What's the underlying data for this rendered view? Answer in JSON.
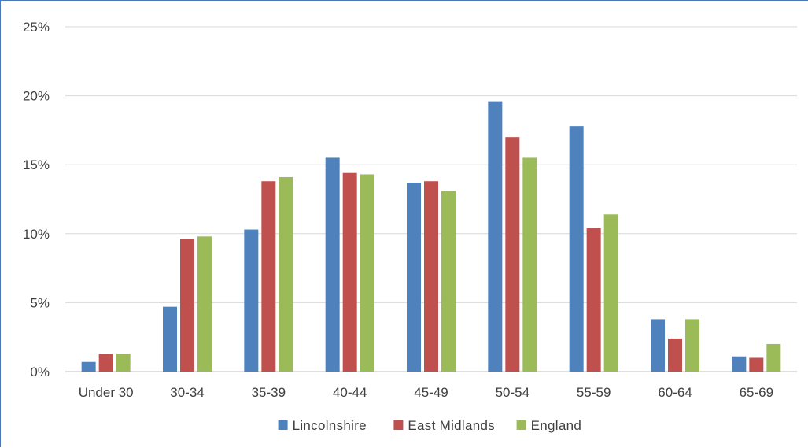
{
  "chart_data": {
    "type": "bar",
    "title": "",
    "xlabel": "",
    "ylabel": "",
    "categories": [
      "Under 30",
      "30-34",
      "35-39",
      "40-44",
      "45-49",
      "50-54",
      "55-59",
      "60-64",
      "65-69"
    ],
    "series": [
      {
        "name": "Lincolnshire",
        "color": "#4f81bd",
        "values": [
          0.7,
          4.7,
          10.3,
          15.5,
          13.7,
          19.6,
          17.8,
          3.8,
          1.1
        ]
      },
      {
        "name": "East Midlands",
        "color": "#c0504d",
        "values": [
          1.3,
          9.6,
          13.8,
          14.4,
          13.8,
          17.0,
          10.4,
          2.4,
          1.0
        ]
      },
      {
        "name": "England",
        "color": "#9bbb59",
        "values": [
          1.3,
          9.8,
          14.1,
          14.3,
          13.1,
          15.5,
          11.4,
          3.8,
          2.0
        ]
      }
    ],
    "ylim": [
      0,
      25
    ],
    "yticks": [
      0,
      5,
      10,
      15,
      20,
      25
    ],
    "ytick_labels": [
      "0%",
      "5%",
      "10%",
      "15%",
      "20%",
      "25%"
    ],
    "grid": true,
    "legend_position": "bottom"
  }
}
